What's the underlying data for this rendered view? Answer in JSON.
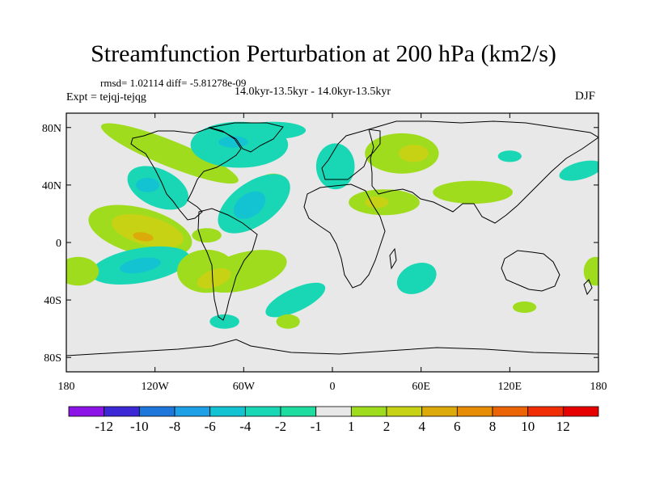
{
  "header": {
    "title": "Streamfunction Perturbation at 200 hPa (km2/s)",
    "stats": "rmsd= 1.02114 diff= -5.81278e-09",
    "subtitle": "14.0kyr-13.5kyr - 14.0kyr-13.5kyr",
    "experiment": "Expt = tejqj-tejqg",
    "season": "DJF"
  },
  "chart_data": {
    "type": "heatmap",
    "title": "Streamfunction Perturbation at 200 hPa (km2/s)",
    "projection": "cylindrical-equidistant",
    "units": "km2/s",
    "x_range": [
      -180,
      180
    ],
    "y_range": [
      -90,
      90
    ],
    "x_ticks": [
      {
        "value": -180,
        "label": "180"
      },
      {
        "value": -120,
        "label": "120W"
      },
      {
        "value": -60,
        "label": "60W"
      },
      {
        "value": 0,
        "label": "0"
      },
      {
        "value": 60,
        "label": "60E"
      },
      {
        "value": 120,
        "label": "120E"
      },
      {
        "value": 180,
        "label": "180"
      }
    ],
    "y_ticks": [
      {
        "value": 80,
        "label": "80N"
      },
      {
        "value": 40,
        "label": "40N"
      },
      {
        "value": 0,
        "label": "0"
      },
      {
        "value": -40,
        "label": "40S"
      },
      {
        "value": -80,
        "label": "80S"
      }
    ],
    "levels": [
      {
        "label": "-12",
        "color": "#8c14e6"
      },
      {
        "label": "-10",
        "color": "#3c28d4"
      },
      {
        "label": "-8",
        "color": "#1e78dc"
      },
      {
        "label": "-6",
        "color": "#1ea0e6"
      },
      {
        "label": "-4",
        "color": "#14c3d2"
      },
      {
        "label": "-2",
        "color": "#19d7b4"
      },
      {
        "label": "-1",
        "color": "#1edca0"
      },
      {
        "label": "1",
        "color": "#e8e8e8"
      },
      {
        "label": "2",
        "color": "#a0dc1e"
      },
      {
        "label": "4",
        "color": "#c8d214"
      },
      {
        "label": "6",
        "color": "#dcaa0a"
      },
      {
        "label": "8",
        "color": "#e68c05"
      },
      {
        "label": "10",
        "color": "#eb6405"
      },
      {
        "label": "12",
        "color": "#f02d05"
      },
      {
        "label": "",
        "color": "#e60000"
      }
    ],
    "anomalies": [
      {
        "lon": -110,
        "lat": 62,
        "rx": 50,
        "ry": 9,
        "rot": 22,
        "value": 2
      },
      {
        "lon": -118,
        "lat": 38,
        "rx": 22,
        "ry": 13,
        "rot": 25,
        "value": -2
      },
      {
        "lon": -125,
        "lat": 40,
        "rx": 8,
        "ry": 5,
        "rot": 0,
        "value": -4
      },
      {
        "lon": -130,
        "lat": 8,
        "rx": 36,
        "ry": 16,
        "rot": 15,
        "value": 2
      },
      {
        "lon": -125,
        "lat": 8,
        "rx": 25,
        "ry": 10,
        "rot": 15,
        "value": 4
      },
      {
        "lon": -128,
        "lat": 4,
        "rx": 7,
        "ry": 3,
        "rot": 10,
        "value": 6
      },
      {
        "lon": -130,
        "lat": -16,
        "rx": 34,
        "ry": 12,
        "rot": -10,
        "value": -2
      },
      {
        "lon": -130,
        "lat": -16,
        "rx": 14,
        "ry": 5,
        "rot": -10,
        "value": -4
      },
      {
        "lon": -172,
        "lat": -20,
        "rx": 14,
        "ry": 10,
        "rot": 0,
        "value": 2
      },
      {
        "lon": -85,
        "lat": 5,
        "rx": 10,
        "ry": 5,
        "rot": 0,
        "value": 2
      },
      {
        "lon": -63,
        "lat": 68,
        "rx": 33,
        "ry": 16,
        "rot": 0,
        "value": -2
      },
      {
        "lon": -67,
        "lat": 70,
        "rx": 10,
        "ry": 4,
        "rot": 0,
        "value": -4
      },
      {
        "lon": -40,
        "lat": 78,
        "rx": 22,
        "ry": 6,
        "rot": 0,
        "value": -2
      },
      {
        "lon": -40,
        "lat": 40,
        "rx": 11,
        "ry": 8,
        "rot": 0,
        "value": 2
      },
      {
        "lon": -53,
        "lat": 27,
        "rx": 28,
        "ry": 15,
        "rot": -35,
        "value": -2
      },
      {
        "lon": -56,
        "lat": 26,
        "rx": 12,
        "ry": 8,
        "rot": -35,
        "value": -4
      },
      {
        "lon": -85,
        "lat": -20,
        "rx": 20,
        "ry": 15,
        "rot": 0,
        "value": 2
      },
      {
        "lon": -60,
        "lat": -20,
        "rx": 30,
        "ry": 13,
        "rot": -15,
        "value": 2
      },
      {
        "lon": -80,
        "lat": -25,
        "rx": 12,
        "ry": 6,
        "rot": -20,
        "value": 4
      },
      {
        "lon": -25,
        "lat": -40,
        "rx": 22,
        "ry": 8,
        "rot": -25,
        "value": -2
      },
      {
        "lon": -73,
        "lat": -55,
        "rx": 10,
        "ry": 5,
        "rot": 0,
        "value": -2
      },
      {
        "lon": -30,
        "lat": -55,
        "rx": 8,
        "ry": 5,
        "rot": 0,
        "value": 2
      },
      {
        "lon": 2,
        "lat": 53,
        "rx": 13,
        "ry": 16,
        "rot": 0,
        "value": -2
      },
      {
        "lon": 47,
        "lat": 62,
        "rx": 25,
        "ry": 14,
        "rot": 0,
        "value": 2
      },
      {
        "lon": 55,
        "lat": 62,
        "rx": 10,
        "ry": 6,
        "rot": 0,
        "value": 4
      },
      {
        "lon": 35,
        "lat": 28,
        "rx": 24,
        "ry": 9,
        "rot": 0,
        "value": 2
      },
      {
        "lon": 30,
        "lat": 28,
        "rx": 8,
        "ry": 4,
        "rot": 0,
        "value": 4
      },
      {
        "lon": 57,
        "lat": -25,
        "rx": 14,
        "ry": 10,
        "rot": -25,
        "value": -2
      },
      {
        "lon": 95,
        "lat": 35,
        "rx": 27,
        "ry": 8,
        "rot": 0,
        "value": 2
      },
      {
        "lon": 120,
        "lat": 60,
        "rx": 8,
        "ry": 4,
        "rot": 0,
        "value": -2
      },
      {
        "lon": 168,
        "lat": 50,
        "rx": 15,
        "ry": 6,
        "rot": -15,
        "value": -2
      },
      {
        "lon": 130,
        "lat": -45,
        "rx": 8,
        "ry": 4,
        "rot": 0,
        "value": 2
      },
      {
        "lon": 178,
        "lat": -20,
        "rx": 8,
        "ry": 10,
        "rot": 0,
        "value": 2
      }
    ]
  }
}
